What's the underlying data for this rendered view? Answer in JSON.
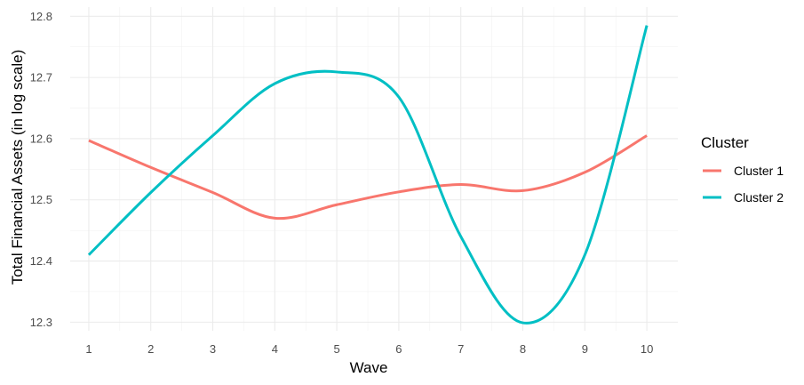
{
  "chart_data": {
    "type": "line",
    "xlabel": "Wave",
    "ylabel": "Total Financial Assets (in log scale)",
    "x": [
      1,
      2,
      3,
      4,
      5,
      6,
      7,
      8,
      9,
      10
    ],
    "xticks": [
      "1",
      "2",
      "3",
      "4",
      "5",
      "6",
      "7",
      "8",
      "9",
      "10"
    ],
    "yticks": [
      "12.3",
      "12.4",
      "12.5",
      "12.6",
      "12.7",
      "12.8"
    ],
    "xlim": [
      0.7,
      10.5
    ],
    "ylim": [
      12.286,
      12.815
    ],
    "grid": true,
    "legend": {
      "title": "Cluster",
      "position": "right"
    },
    "series": [
      {
        "name": "Cluster 1",
        "color": "#F8766D",
        "values": [
          12.597,
          12.553,
          12.512,
          12.47,
          12.492,
          12.513,
          12.525,
          12.515,
          12.545,
          12.605
        ]
      },
      {
        "name": "Cluster 2",
        "color": "#00BFC4",
        "values": [
          12.41,
          12.512,
          12.605,
          12.69,
          12.709,
          12.668,
          12.44,
          12.299,
          12.41,
          12.785
        ]
      }
    ]
  }
}
